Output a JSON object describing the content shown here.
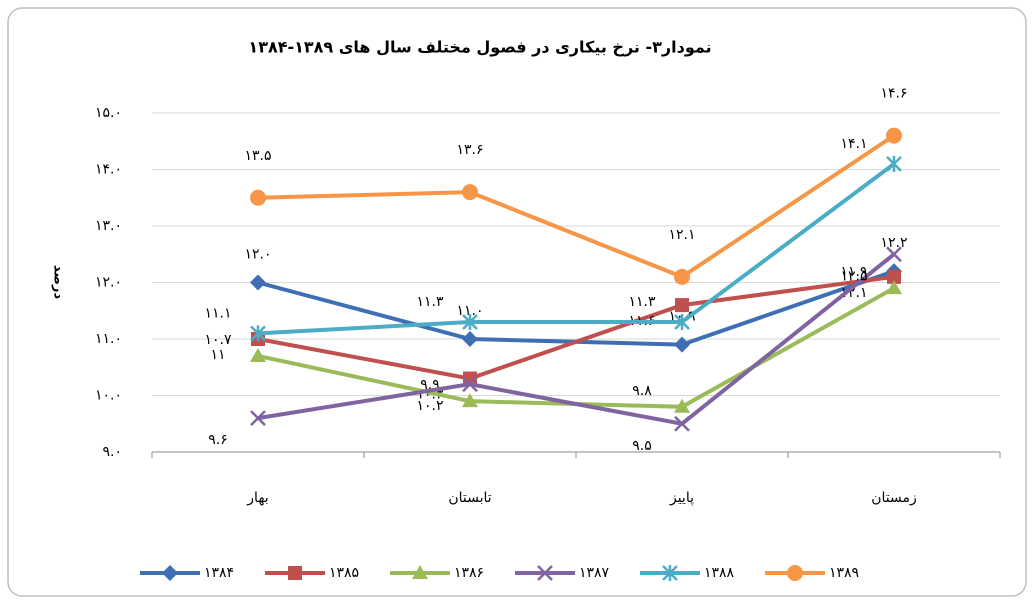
{
  "chart_data": {
    "type": "line",
    "title": "نمودار۳- نرخ بیکاری در فصول مختلف سال های ۱۳۸۹-۱۳۸۴",
    "y_label": "درصد",
    "categories": [
      "بهار",
      "تابستان",
      "پاییز",
      "زمستان"
    ],
    "ylim": [
      9,
      15
    ],
    "yticks": [
      {
        "value": 9,
        "label": "۹.۰"
      },
      {
        "value": 10,
        "label": "۱۰.۰"
      },
      {
        "value": 11,
        "label": "۱۱.۰"
      },
      {
        "value": 12,
        "label": "۱۲.۰"
      },
      {
        "value": 13,
        "label": "۱۳.۰"
      },
      {
        "value": 14,
        "label": "۱۴.۰"
      },
      {
        "value": 15,
        "label": "۱۵.۰"
      }
    ],
    "grid": true,
    "legend": "bottom",
    "series": [
      {
        "name": "۱۳۸۴",
        "color": "#3f6fb3",
        "marker": "diamond",
        "values": [
          12.0,
          11.0,
          10.9,
          12.2
        ],
        "value_labels": [
          "۱۲.۰",
          "۱۱.۰",
          "۱۰.۹",
          "۱۲.۲"
        ]
      },
      {
        "name": "۱۳۸۵",
        "color": "#c0504d",
        "marker": "square",
        "values": [
          11.0,
          10.3,
          11.6,
          12.1
        ],
        "value_labels": [
          "۱۱",
          "۱۰.۳",
          "۱۱.۶",
          "۱۲.۱"
        ]
      },
      {
        "name": "۱۳۸۶",
        "color": "#9bbb59",
        "marker": "triangle",
        "values": [
          10.7,
          9.9,
          9.8,
          11.9
        ],
        "value_labels": [
          "۱۰.۷",
          "۹.۹",
          "۹.۸",
          "۱۱.۹"
        ]
      },
      {
        "name": "۱۳۸۷",
        "color": "#8064a2",
        "marker": "x",
        "values": [
          9.6,
          10.2,
          9.5,
          12.5
        ],
        "value_labels": [
          "۹.۶",
          "۱۰.۲",
          "۹.۵",
          "۱۲.۵"
        ]
      },
      {
        "name": "۱۳۸۸",
        "color": "#4bacc6",
        "marker": "star",
        "values": [
          11.1,
          11.3,
          11.3,
          14.1
        ],
        "value_labels": [
          "۱۱.۱",
          "۱۱.۳",
          "۱۱.۳",
          "۱۴.۱"
        ]
      },
      {
        "name": "۱۳۸۹",
        "color": "#f79646",
        "marker": "circle",
        "values": [
          13.5,
          13.6,
          12.1,
          14.6
        ],
        "value_labels": [
          "۱۳.۵",
          "۱۳.۶",
          "۱۲.۱",
          "۱۴.۶"
        ]
      }
    ]
  }
}
